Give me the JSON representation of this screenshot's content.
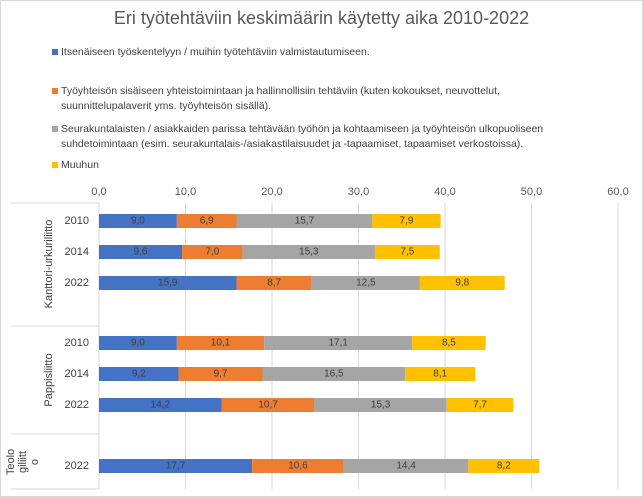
{
  "chart_data": {
    "type": "bar",
    "stacked": true,
    "orientation": "horizontal",
    "title": "Eri työtehtäviin keskimäärin käytetty aika 2010-2022",
    "xlim": [
      0,
      60
    ],
    "xticks": [
      "0,0",
      "10,0",
      "20,0",
      "30,0",
      "40,0",
      "50,0",
      "60,0"
    ],
    "grid": true,
    "legend_position": "top",
    "groups": [
      {
        "label": "Kanttori-urkuriliitto",
        "categories": [
          "2010",
          "2014",
          "2022"
        ]
      },
      {
        "label": "Pappisliitto",
        "categories": [
          "2010",
          "2014",
          "2022"
        ]
      },
      {
        "label": "Teologiliitto",
        "categories": [
          "2022"
        ]
      }
    ],
    "series": [
      {
        "name": "Itsenäiseen työskentelyyn / muihin työtehtäviin valmistautumiseen.",
        "color": "#4472c4",
        "values": [
          9.0,
          9.6,
          15.9,
          9.0,
          9.2,
          14.2,
          17.7
        ],
        "labels": [
          "9,0",
          "9,6",
          "15,9",
          "9,0",
          "9,2",
          "14,2",
          "17,7"
        ]
      },
      {
        "name": "Työyhteisön sisäiseen yhteistoimintaan ja hallinnollisiin tehtäviin (kuten kokoukset, neuvottelut, suunnittelupalaverit yms. työyhteisön sisällä)",
        "color": "#ed7d31",
        "values": [
          6.9,
          7.0,
          8.7,
          10.1,
          9.7,
          10.7,
          10.6
        ],
        "labels": [
          "6,9",
          "7,0",
          "8,7",
          "10,1",
          "9,7",
          "10,7",
          "10,6"
        ]
      },
      {
        "name": "Seurakuntalaisten / asiakkaiden parissa tehtävään työhön ja kohtaamiseen ja työyhteisön ulkopuoliseen suhdetoimintaan (esim. seurakuntalais-/asiakastilaisuudet ja -tapaamiset, tapaamiset verkostoissa).",
        "color": "#a5a5a5",
        "values": [
          15.7,
          15.3,
          12.5,
          17.1,
          16.5,
          15.3,
          14.4
        ],
        "labels": [
          "15,7",
          "15,3",
          "12,5",
          "17,1",
          "16,5",
          "15,3",
          "14,4"
        ]
      },
      {
        "name": "Muuhun",
        "color": "#ffc000",
        "values": [
          7.9,
          7.5,
          9.8,
          8.5,
          8.1,
          7.7,
          8.2
        ],
        "labels": [
          "7,9",
          "7,5",
          "9,8",
          "8,5",
          "8,1",
          "7,7",
          "8,2"
        ]
      }
    ]
  },
  "legend": [
    {
      "lines": [
        "Itsenäiseen työskentelyyn / muihin työtehtäviin valmistautumiseen."
      ]
    },
    {
      "lines": [
        "Työyhteisön sisäiseen yhteistoimintaan ja hallinnollisiin tehtäviin (kuten kokoukset, neuvottelut,",
        "suunnittelupalaverit yms. työyhteisön sisällä)."
      ]
    },
    {
      "lines": [
        "Seurakuntalaisten / asiakkaiden parissa tehtävään työhön ja kohtaamiseen ja työyhteisön ulkopuoliseen",
        "suhdetoimintaan (esim. seurakuntalais-/asiakastilaisuudet ja -tapaamiset, tapaamiset verkostoissa)."
      ]
    },
    {
      "lines": [
        "Muuhun"
      ]
    }
  ],
  "group_labels": [
    {
      "lines": [
        "Kanttori-urkuriliitto"
      ]
    },
    {
      "lines": [
        "Pappisliitto"
      ]
    },
    {
      "lines": [
        "Teolo",
        "giliitt",
        "o"
      ]
    }
  ]
}
